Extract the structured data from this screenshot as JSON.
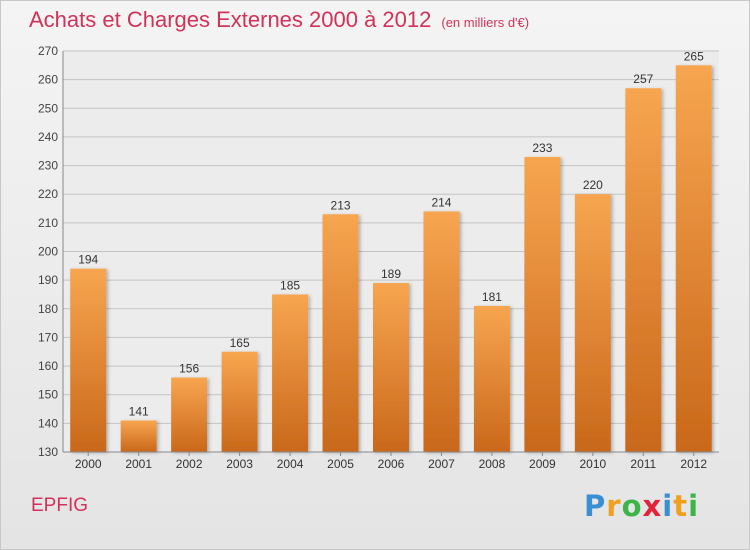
{
  "chart_data": {
    "type": "bar",
    "title": "Achats et Charges Externes 2000 à 2012",
    "subtitle": "(en milliers d'€)",
    "categories": [
      "2000",
      "2001",
      "2002",
      "2003",
      "2004",
      "2005",
      "2006",
      "2007",
      "2008",
      "2009",
      "2010",
      "2011",
      "2012"
    ],
    "values": [
      194,
      141,
      156,
      165,
      185,
      213,
      189,
      214,
      181,
      233,
      220,
      257,
      265
    ],
    "ylim": [
      130,
      270
    ],
    "yticks": [
      130,
      140,
      150,
      160,
      170,
      180,
      190,
      200,
      210,
      220,
      230,
      240,
      250,
      260,
      270
    ],
    "grid": true,
    "bar_color_top": "#f7a550",
    "bar_color_bottom": "#c9681a"
  },
  "location": "EPFIG",
  "logo": {
    "letters": [
      "P",
      "r",
      "o",
      "x",
      "i",
      "t",
      "i"
    ],
    "colors": [
      "#3a8fd4",
      "#f0a020",
      "#3cb449",
      "#e2233a",
      "#3a8fd4",
      "#f0a020",
      "#3cb449"
    ]
  }
}
